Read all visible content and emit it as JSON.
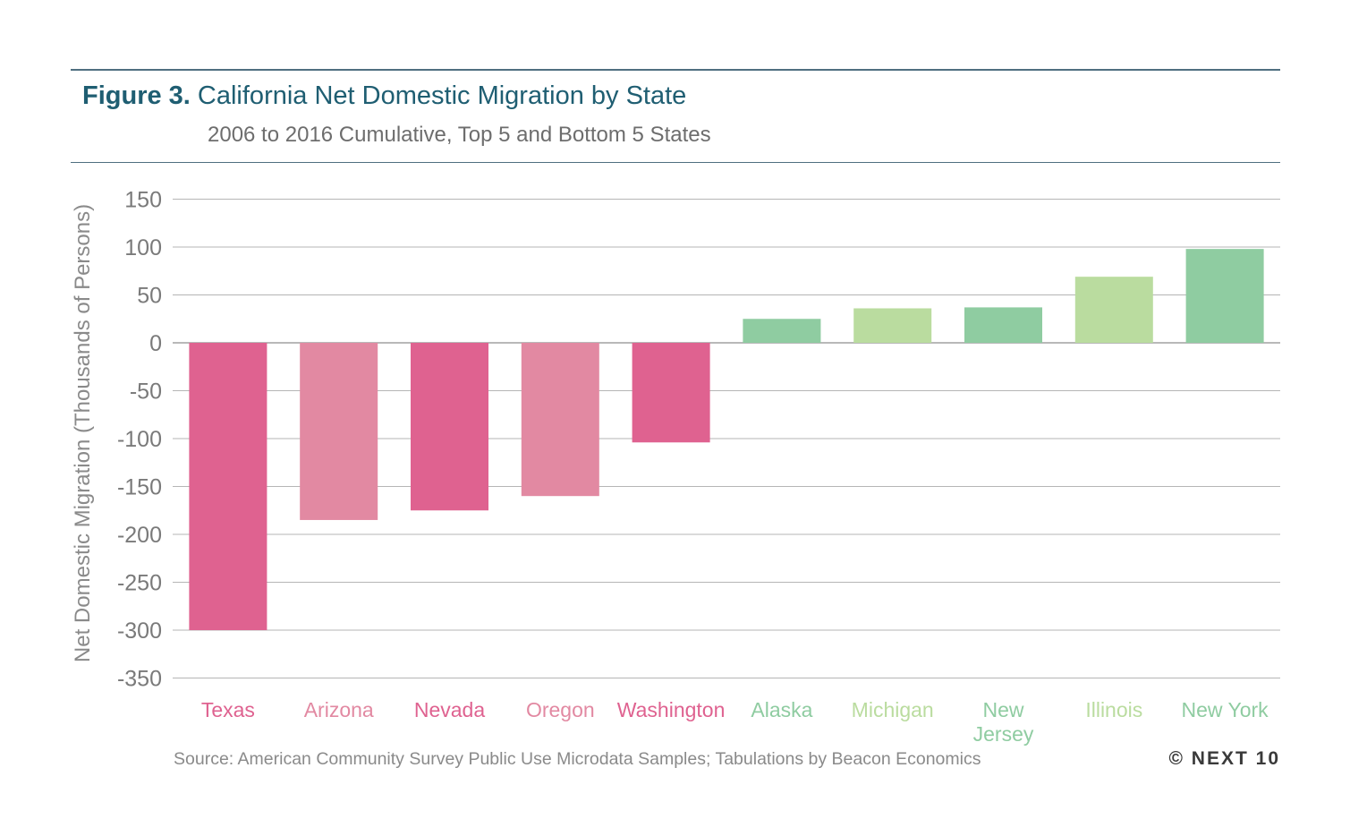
{
  "figure_label": "Figure 3.",
  "title": "California Net Domestic Migration by State",
  "subtitle": "2006 to 2016 Cumulative, Top 5 and Bottom 5 States",
  "source": "Source: American Community Survey Public Use Microdata Samples; Tabulations by Beacon Economics",
  "logo": "© NEXT 10",
  "chart_data": {
    "type": "bar",
    "title": "California Net Domestic Migration by State",
    "subtitle": "2006 to 2016 Cumulative, Top 5 and Bottom 5 States",
    "xlabel": "",
    "ylabel": "Net Domestic Migration (Thousands of Persons)",
    "ylim": [
      -350,
      150
    ],
    "yticks": [
      150,
      100,
      50,
      0,
      -50,
      -100,
      -150,
      -200,
      -250,
      -300,
      -350
    ],
    "grid": true,
    "categories": [
      "Texas",
      "Arizona",
      "Nevada",
      "Oregon",
      "Washington",
      "Alaska",
      "Michigan",
      "New Jersey",
      "Illinois",
      "New York"
    ],
    "category_lines": [
      [
        "Texas"
      ],
      [
        "Arizona"
      ],
      [
        "Nevada"
      ],
      [
        "Oregon"
      ],
      [
        "Washington"
      ],
      [
        "Alaska"
      ],
      [
        "Michigan"
      ],
      [
        "New",
        "Jersey"
      ],
      [
        "Illinois"
      ],
      [
        "New York"
      ]
    ],
    "values": [
      -300,
      -185,
      -175,
      -160,
      -104,
      25,
      36,
      37,
      69,
      98
    ],
    "bar_colors": [
      "#df6290",
      "#e289a2",
      "#df6290",
      "#e289a2",
      "#df6290",
      "#8fcca1",
      "#badc9f",
      "#8fcca1",
      "#badc9f",
      "#8fcca1"
    ],
    "label_colors": [
      "#df6290",
      "#e289a2",
      "#df6290",
      "#e289a2",
      "#df6290",
      "#8fcca1",
      "#badc9f",
      "#8fcca1",
      "#badc9f",
      "#8fcca1"
    ],
    "colors": {
      "gridline": "#b5b5b5",
      "tick_label": "#7a7a7a",
      "axis_label": "#8a8a8a"
    }
  }
}
